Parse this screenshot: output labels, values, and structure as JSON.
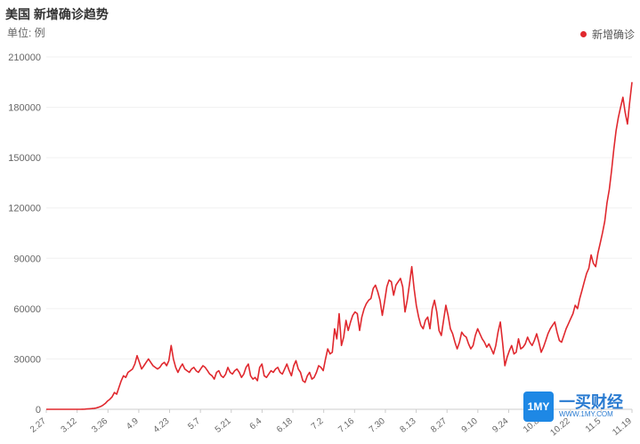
{
  "header": {
    "title": "美国 新增确诊趋势",
    "unit": "单位: 例"
  },
  "legend": {
    "label": "新增确诊",
    "color": "#e0282e"
  },
  "watermark": {
    "logo_text": "1MY",
    "brand": "一买财经",
    "domain": "WWW.1MY.COM"
  },
  "chart_data": {
    "type": "line",
    "ylim": [
      0,
      210000
    ],
    "yticks": [
      0,
      30000,
      60000,
      90000,
      120000,
      150000,
      180000,
      210000
    ],
    "xtick_labels": [
      "2.27",
      "3.12",
      "3.26",
      "4.9",
      "4.23",
      "5.7",
      "5.21",
      "6.4",
      "6.18",
      "7.2",
      "7.16",
      "7.30",
      "8.13",
      "8.27",
      "9.10",
      "9.24",
      "10.8",
      "10.22",
      "11.5",
      "11.19"
    ],
    "grid": "horizontal",
    "series": [
      {
        "name": "新增确诊",
        "color": "#e0282e",
        "values": [
          0,
          0,
          0,
          0,
          0,
          0,
          0,
          0,
          0,
          0,
          0,
          0,
          0,
          0,
          10,
          20,
          50,
          100,
          200,
          300,
          400,
          600,
          800,
          1200,
          1700,
          2500,
          3500,
          5000,
          6000,
          7500,
          10000,
          9000,
          13000,
          17000,
          20000,
          19000,
          22000,
          23000,
          24000,
          27000,
          32000,
          28000,
          24000,
          26000,
          28000,
          30000,
          28000,
          26000,
          25000,
          24000,
          25000,
          27000,
          28000,
          26000,
          29000,
          38000,
          30000,
          25000,
          22000,
          25000,
          27000,
          24000,
          23000,
          22000,
          24000,
          25000,
          23000,
          22000,
          24000,
          26000,
          25000,
          23000,
          21000,
          20000,
          18000,
          22000,
          23000,
          20000,
          19000,
          21000,
          25000,
          22000,
          21000,
          23000,
          24000,
          22000,
          19000,
          21000,
          25000,
          27000,
          20000,
          18000,
          19000,
          17000,
          25000,
          27000,
          20000,
          19000,
          21000,
          23000,
          22000,
          24000,
          25000,
          22000,
          21000,
          24000,
          27000,
          23000,
          20000,
          26000,
          29000,
          24000,
          22000,
          17000,
          16000,
          20000,
          22000,
          18000,
          19000,
          22000,
          26000,
          25000,
          23000,
          30000,
          36000,
          33000,
          34000,
          48000,
          42000,
          57000,
          38000,
          43000,
          53000,
          47000,
          52000,
          56000,
          58000,
          57000,
          47000,
          55000,
          60000,
          63000,
          65000,
          66000,
          72000,
          74000,
          70000,
          65000,
          56000,
          64000,
          73000,
          77000,
          76000,
          68000,
          74000,
          76000,
          78000,
          73000,
          58000,
          65000,
          75000,
          85000,
          72000,
          62000,
          55000,
          50000,
          48000,
          53000,
          55000,
          48000,
          60000,
          65000,
          58000,
          47000,
          44000,
          53000,
          62000,
          56000,
          48000,
          45000,
          40000,
          36000,
          40000,
          46000,
          44000,
          43000,
          39000,
          36000,
          38000,
          44000,
          48000,
          45000,
          42000,
          40000,
          37000,
          39000,
          36000,
          33000,
          38000,
          46000,
          52000,
          40000,
          26000,
          31000,
          35000,
          38000,
          33000,
          34000,
          42000,
          36000,
          37000,
          39000,
          43000,
          40000,
          38000,
          41000,
          45000,
          40000,
          34000,
          37000,
          41000,
          45000,
          48000,
          50000,
          52000,
          46000,
          41000,
          40000,
          44000,
          48000,
          51000,
          54000,
          57000,
          62000,
          60000,
          66000,
          71000,
          76000,
          81000,
          84000,
          92000,
          87000,
          85000,
          93000,
          99000,
          105000,
          112000,
          123000,
          131000,
          142000,
          155000,
          166000,
          174000,
          180000,
          186000,
          177000,
          170000,
          183000,
          195000
        ]
      }
    ]
  }
}
